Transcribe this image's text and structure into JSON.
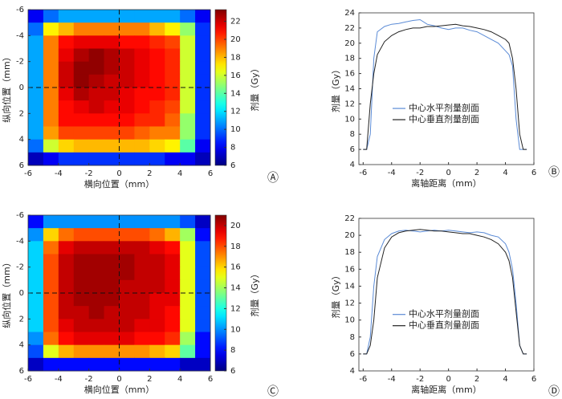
{
  "chart_data": [
    {
      "type": "heatmap",
      "panel_label": "Ⓐ",
      "xlabel": "横向位置（mm）",
      "ylabel": "纵向位置（mm）",
      "xlim": [
        -6,
        6
      ],
      "ylim": [
        -6,
        6
      ],
      "yaxis_reversed": true,
      "xticks": [
        -6,
        -4,
        -2,
        0,
        2,
        4,
        6
      ],
      "yticks": [
        -6,
        -4,
        -2,
        0,
        2,
        4,
        6
      ],
      "crosshair": true,
      "x": [
        -5.5,
        -4.5,
        -3.5,
        -2.5,
        -1.5,
        -0.5,
        0.5,
        1.5,
        2.5,
        3.5,
        4.5,
        5.5
      ],
      "y": [
        -5.5,
        -4.5,
        -3.5,
        -2.5,
        -1.5,
        -0.5,
        0.5,
        1.5,
        2.5,
        3.5,
        4.5,
        5.5
      ],
      "z": [
        [
          8,
          10,
          11,
          11,
          11,
          11,
          11,
          11,
          11,
          11,
          10,
          8
        ],
        [
          10,
          17,
          18,
          19,
          19,
          19,
          19,
          19,
          18,
          17,
          15,
          9
        ],
        [
          11,
          19,
          21,
          21.5,
          21.5,
          21.5,
          21,
          21,
          20.5,
          20,
          16,
          9
        ],
        [
          11,
          19,
          21.5,
          22.5,
          23,
          22.5,
          22,
          21.5,
          21,
          20.5,
          16,
          9
        ],
        [
          11,
          19,
          22,
          23,
          23,
          22.5,
          22,
          21.5,
          21,
          20.5,
          16,
          9
        ],
        [
          11,
          19,
          22,
          23,
          22.5,
          22,
          22,
          21.5,
          21,
          20.5,
          16,
          9
        ],
        [
          11,
          19,
          21.5,
          22.5,
          22,
          22,
          21.5,
          21,
          21,
          20.5,
          16,
          9
        ],
        [
          11,
          19,
          21,
          21.5,
          22,
          21.5,
          21.5,
          21,
          20.5,
          20,
          16,
          9
        ],
        [
          11,
          19,
          21,
          21,
          21,
          21,
          21,
          20.5,
          20.5,
          19.5,
          15,
          9
        ],
        [
          11,
          18.5,
          20,
          20,
          20,
          20,
          20,
          19.5,
          19,
          19,
          15,
          9
        ],
        [
          10,
          16,
          17.5,
          18,
          18,
          18,
          18,
          18,
          17.5,
          17,
          14,
          8
        ],
        [
          7,
          8,
          9,
          9,
          9,
          9,
          9,
          9,
          9,
          8,
          8,
          7
        ]
      ],
      "colorbar": {
        "label": "剂量（Gy）",
        "lim": [
          6,
          23.3
        ],
        "ticks": [
          6,
          8,
          10,
          12,
          14,
          16,
          18,
          20,
          22
        ]
      }
    },
    {
      "type": "line",
      "panel_label": "Ⓑ",
      "xlabel": "离轴距离（mm）",
      "ylabel": "剂量（Gy）",
      "xlim": [
        -6.3,
        6
      ],
      "ylim": [
        4,
        24
      ],
      "xticks": [
        -6,
        -4,
        -2,
        0,
        2,
        4,
        6
      ],
      "yticks": [
        4,
        6,
        8,
        10,
        12,
        14,
        16,
        18,
        20,
        22,
        24
      ],
      "x": [
        -6,
        -5.75,
        -5.5,
        -5.25,
        -5,
        -4.5,
        -4,
        -3.5,
        -3,
        -2.5,
        -2,
        -1.5,
        -1,
        -0.5,
        0,
        0.5,
        1,
        1.5,
        2,
        2.5,
        3,
        3.5,
        4,
        4.25,
        4.5,
        4.75,
        5,
        5.25,
        5.5
      ],
      "series": [
        {
          "name": "中心水平剂量剖面",
          "color": "#5b8bd6",
          "values": [
            6,
            6,
            8,
            18,
            21.5,
            22.2,
            22.5,
            22.6,
            22.8,
            23,
            23.1,
            22.5,
            22.3,
            22,
            21.8,
            22,
            22,
            21.7,
            21.5,
            21,
            20.5,
            20,
            19,
            18.5,
            17,
            10,
            6,
            6,
            6
          ]
        },
        {
          "name": "中心垂直剂量剖面",
          "color": "#222222",
          "values": [
            6,
            6,
            12,
            16,
            18.5,
            20.2,
            21,
            21.5,
            21.8,
            22,
            22,
            22.2,
            22.2,
            22.3,
            22.4,
            22.5,
            22.3,
            22.2,
            22,
            21.8,
            21.5,
            21,
            20.5,
            20,
            18,
            14,
            8,
            6,
            6
          ]
        }
      ]
    },
    {
      "type": "heatmap",
      "panel_label": "Ⓒ",
      "xlabel": "横向位置（mm）",
      "ylabel": "纵向位置（mm）",
      "xlim": [
        -6,
        6
      ],
      "ylim": [
        -6,
        6
      ],
      "yaxis_reversed": true,
      "xticks": [
        -6,
        -4,
        -2,
        0,
        2,
        4,
        6
      ],
      "yticks": [
        -6,
        -4,
        -2,
        0,
        2,
        4,
        6
      ],
      "crosshair": true,
      "x": [
        -5.5,
        -4.5,
        -3.5,
        -2.5,
        -1.5,
        -0.5,
        0.5,
        1.5,
        2.5,
        3.5,
        4.5,
        5.5
      ],
      "y": [
        -5.5,
        -4.5,
        -3.5,
        -2.5,
        -1.5,
        -0.5,
        0.5,
        1.5,
        2.5,
        3.5,
        4.5,
        5.5
      ],
      "z": [
        [
          8,
          10,
          10,
          10,
          10,
          10,
          10,
          10,
          10,
          10,
          9,
          7
        ],
        [
          10,
          16,
          17.5,
          18,
          18,
          18,
          18,
          18,
          17.5,
          16.5,
          14,
          8
        ],
        [
          11,
          17.5,
          19.5,
          20,
          20,
          20,
          20,
          20,
          19.5,
          19,
          15,
          9
        ],
        [
          11,
          18,
          20,
          20.5,
          20.5,
          20.5,
          20.5,
          20,
          20,
          19.5,
          15,
          9
        ],
        [
          11,
          18,
          20,
          20.5,
          20.5,
          20.5,
          20.5,
          20,
          20,
          19.5,
          15,
          9
        ],
        [
          11,
          18,
          20,
          20.5,
          20.5,
          20.5,
          20,
          20,
          20,
          19.5,
          15,
          9
        ],
        [
          11,
          18,
          20,
          20.5,
          20.5,
          20.5,
          20,
          20,
          19.5,
          19.5,
          15,
          9
        ],
        [
          11,
          18,
          20,
          20,
          20.5,
          20,
          20,
          20,
          19.5,
          19,
          15,
          9
        ],
        [
          11,
          18,
          19.5,
          20,
          20,
          20,
          20,
          19.5,
          19.5,
          19,
          15,
          9
        ],
        [
          10,
          17.5,
          19,
          19.5,
          19.5,
          19.5,
          19.5,
          19,
          19,
          18.5,
          14,
          8
        ],
        [
          9,
          15,
          16.5,
          17,
          17,
          17,
          17,
          17,
          16.5,
          16,
          13,
          8
        ],
        [
          7,
          8,
          8,
          8,
          8,
          8,
          8,
          8,
          8,
          8,
          7,
          7
        ]
      ],
      "colorbar": {
        "label": "剂量（Gy）",
        "lim": [
          6,
          21
        ],
        "ticks": [
          6,
          8,
          10,
          12,
          14,
          16,
          18,
          20
        ]
      }
    },
    {
      "type": "line",
      "panel_label": "Ⓓ",
      "xlabel": "离轴距离（mm）",
      "ylabel": "剂量（Gy）",
      "xlim": [
        -6.3,
        6
      ],
      "ylim": [
        4,
        22
      ],
      "xticks": [
        -6,
        -4,
        -2,
        0,
        2,
        4,
        6
      ],
      "yticks": [
        4,
        6,
        8,
        10,
        12,
        14,
        16,
        18,
        20,
        22
      ],
      "x": [
        -6,
        -5.75,
        -5.5,
        -5.25,
        -5,
        -4.5,
        -4,
        -3.5,
        -3,
        -2.5,
        -2,
        -1.5,
        -1,
        -0.5,
        0,
        0.5,
        1,
        1.5,
        2,
        2.5,
        3,
        3.5,
        4,
        4.25,
        4.5,
        4.75,
        5,
        5.25,
        5.5
      ],
      "series": [
        {
          "name": "中心水平剂量剖面",
          "color": "#5b8bd6",
          "values": [
            6,
            6,
            8,
            14,
            17.5,
            19.5,
            20.2,
            20.5,
            20.6,
            20.5,
            20.4,
            20.5,
            20.6,
            20.5,
            20.6,
            20.5,
            20.4,
            20.3,
            20.4,
            20.3,
            20,
            19.8,
            19,
            18,
            16,
            12,
            7,
            6,
            6
          ]
        },
        {
          "name": "中心垂直剂量剖面",
          "color": "#222222",
          "values": [
            6,
            6,
            7,
            10,
            15,
            18.5,
            19.8,
            20.3,
            20.5,
            20.6,
            20.7,
            20.6,
            20.5,
            20.5,
            20.4,
            20.3,
            20.2,
            20.2,
            20,
            19.8,
            19.5,
            19,
            18,
            17,
            15,
            11,
            7,
            6,
            6
          ]
        }
      ]
    }
  ]
}
